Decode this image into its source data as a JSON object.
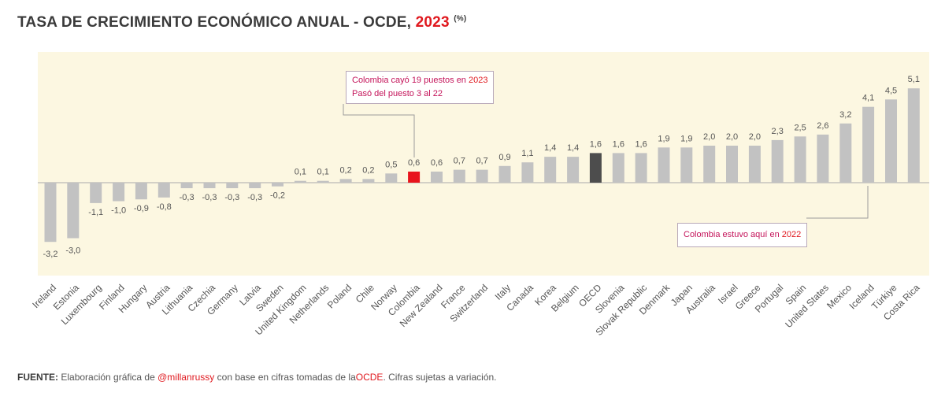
{
  "header": {
    "title_main": "TASA DE CRECIMIENTO ECONÓMICO ANUAL - OCDE,",
    "title_year": "2023",
    "title_unit": "(%)"
  },
  "annotations": {
    "top_line1_a": "Colombia cayó 19 puestos en",
    "top_line1_b": "2023",
    "top_line2": "Pasó del puesto 3 al 22",
    "bottom_a": "Colombia estuvo aquí en",
    "bottom_b": "2022"
  },
  "footer": {
    "label": "FUENTE:",
    "text_a": "Elaboración gráfica de",
    "handle": "@millanrussy",
    "text_b": "con base en cifras tomadas de la",
    "org": "OCDE",
    "text_c": ". Cifras sujetas a variación."
  },
  "colors": {
    "default_bar": "#c2c2c2",
    "colombia_bar": "#e8141c",
    "oecd_bar": "#4d4d4d",
    "plot_bg": "#fcf7e1",
    "title_accent": "#e0191f",
    "callout_text": "#c4145a"
  },
  "chart_data": {
    "type": "bar",
    "categories": [
      "Ireland",
      "Estonia",
      "Luxembourg",
      "Finland",
      "Hungary",
      "Austria",
      "Lithuania",
      "Czechia",
      "Germany",
      "Latvia",
      "Sweden",
      "United Kingdom",
      "Netherlands",
      "Poland",
      "Chile",
      "Norway",
      "Colombia",
      "New Zealand",
      "France",
      "Switzerland",
      "Italy",
      "Canada",
      "Korea",
      "Belgium",
      "OECD",
      "Slovenia",
      "Slovak Republic",
      "Denmark",
      "Japan",
      "Australia",
      "Israel",
      "Greece",
      "Portugal",
      "Spain",
      "United States",
      "Mexico",
      "Iceland",
      "Türkiye",
      "Costa Rica"
    ],
    "values": [
      -3.2,
      -3.0,
      -1.1,
      -1.0,
      -0.9,
      -0.8,
      -0.3,
      -0.3,
      -0.3,
      -0.3,
      -0.2,
      0.1,
      0.1,
      0.2,
      0.2,
      0.5,
      0.6,
      0.6,
      0.7,
      0.7,
      0.9,
      1.1,
      1.4,
      1.4,
      1.6,
      1.6,
      1.6,
      1.9,
      1.9,
      2.0,
      2.0,
      2.0,
      2.3,
      2.5,
      2.6,
      3.2,
      4.1,
      4.5,
      5.1
    ],
    "value_labels": [
      "-3,2",
      "-3,0",
      "-1,1",
      "-1,0",
      "-0,9",
      "-0,8",
      "-0,3",
      "-0,3",
      "-0,3",
      "-0,3",
      "-0,2",
      "0,1",
      "0,1",
      "0,2",
      "0,2",
      "0,5",
      "0,6",
      "0,6",
      "0,7",
      "0,7",
      "0,9",
      "1,1",
      "1,4",
      "1,4",
      "1,6",
      "1,6",
      "1,6",
      "1,9",
      "1,9",
      "2,0",
      "2,0",
      "2,0",
      "2,3",
      "2,5",
      "2,6",
      "3,2",
      "4,1",
      "4,5",
      "5,1"
    ],
    "highlight": {
      "Colombia": "colombia_bar",
      "OECD": "oecd_bar"
    },
    "ylim": [
      -3.5,
      7.0
    ],
    "grid": false,
    "title": "TASA DE CRECIMIENTO ECONÓMICO ANUAL - OCDE, 2023 (%)",
    "xlabel": "",
    "ylabel": ""
  }
}
